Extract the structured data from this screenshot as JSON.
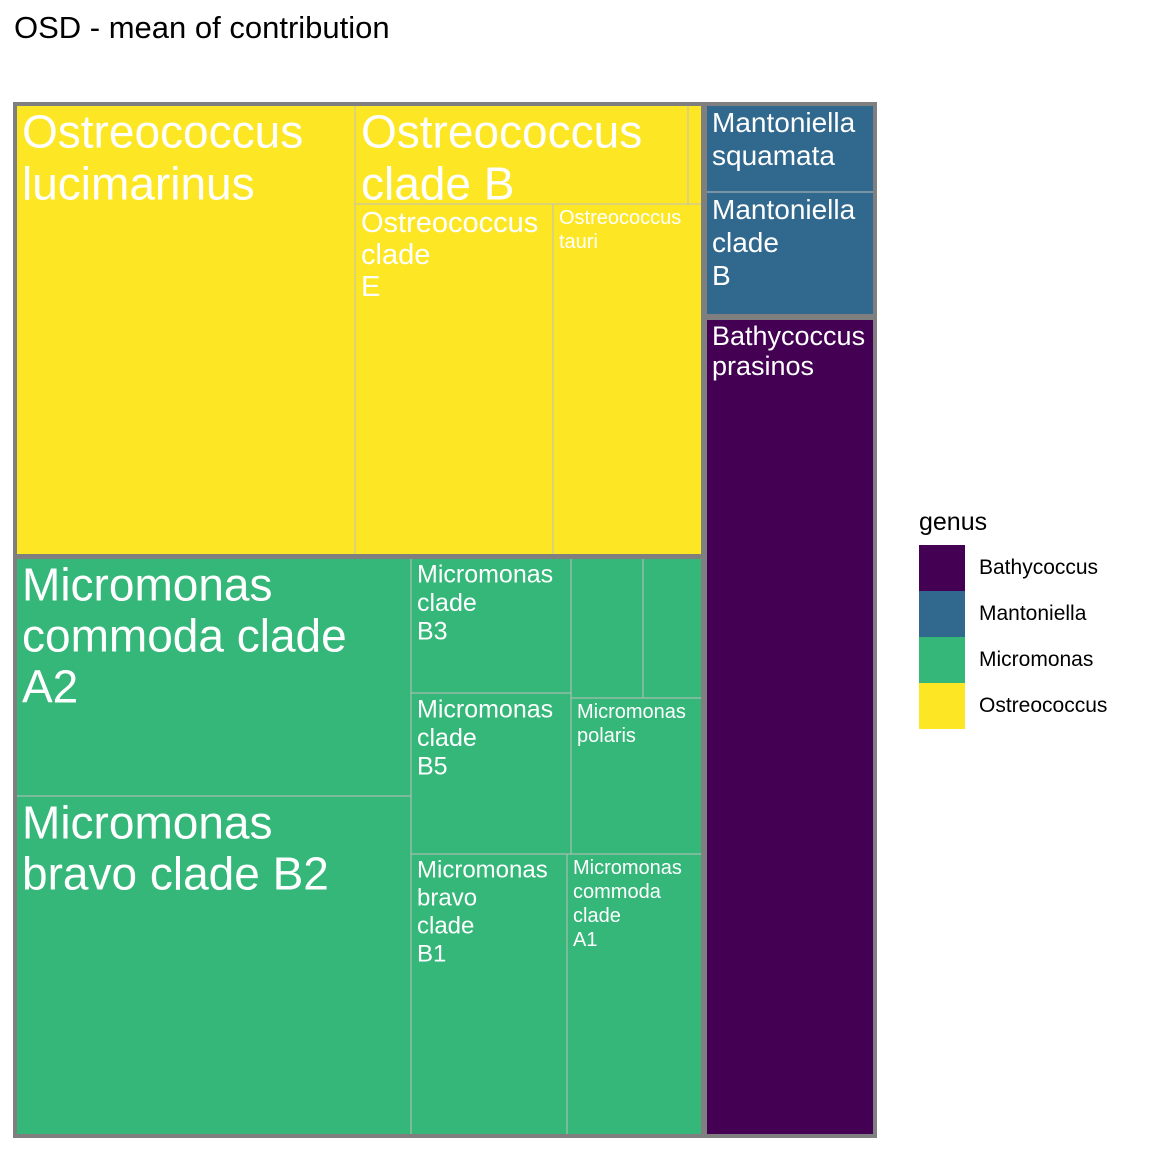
{
  "title": "OSD - mean of contribution",
  "chart_data": {
    "type": "treemap",
    "title": "OSD - mean of contribution",
    "legend": {
      "title": "genus",
      "placement": "right",
      "entries": [
        {
          "name": "Bathycoccus",
          "color": "#440154"
        },
        {
          "name": "Mantoniella",
          "color": "#31688E"
        },
        {
          "name": "Micromonas",
          "color": "#35B779"
        },
        {
          "name": "Ostreococcus",
          "color": "#FDE725"
        }
      ]
    },
    "groups": [
      {
        "genus": "Ostreococcus",
        "color": "#FDE725",
        "leaves": [
          {
            "label": "Ostreococcus lucimarinus"
          },
          {
            "label": "Ostreococcus clade B"
          },
          {
            "label": "Ostreococcus clade E"
          },
          {
            "label": "Ostreococcus tauri"
          },
          {
            "label": ""
          }
        ]
      },
      {
        "genus": "Micromonas",
        "color": "#35B779",
        "leaves": [
          {
            "label": "Micromonas commoda clade A2"
          },
          {
            "label": "Micromonas bravo clade B2"
          },
          {
            "label": "Micromonas clade B3"
          },
          {
            "label": "Micromonas clade B5"
          },
          {
            "label": "Micromonas bravo clade B1"
          },
          {
            "label": "Micromonas commoda clade A1"
          },
          {
            "label": "Micromonas polaris"
          },
          {
            "label": ""
          },
          {
            "label": ""
          }
        ]
      },
      {
        "genus": "Mantoniella",
        "color": "#31688E",
        "leaves": [
          {
            "label": "Mantoniella squamata"
          },
          {
            "label": "Mantoniella clade B"
          }
        ]
      },
      {
        "genus": "Bathycoccus",
        "color": "#440154",
        "leaves": [
          {
            "label": "Bathycoccus prasinos"
          }
        ]
      }
    ]
  }
}
